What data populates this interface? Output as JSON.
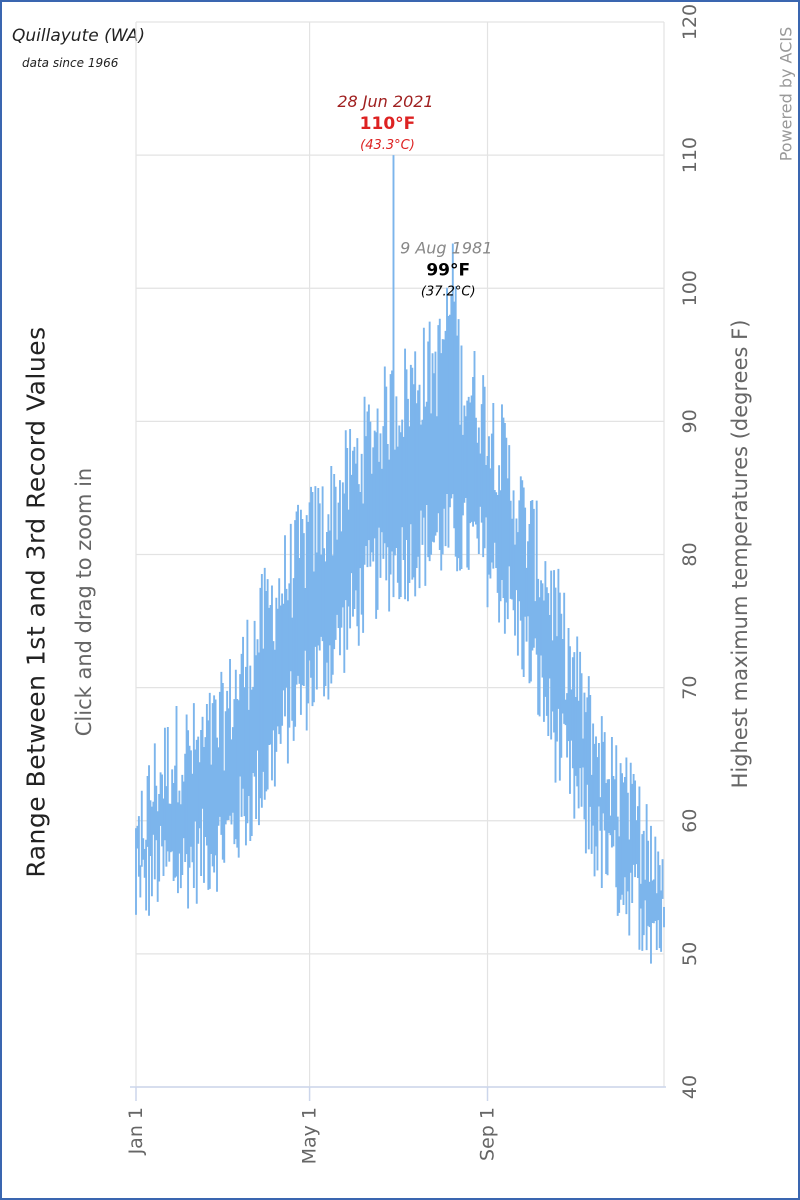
{
  "station": {
    "name": "Quillayute (WA)",
    "since": "data since 1966"
  },
  "credits": "Powered by ACIS",
  "chart_data": {
    "type": "bar",
    "title": "Range Between 1st and 3rd Record Values",
    "subtitle": "Click and drag to zoom in",
    "xlabel": "",
    "ylabel": "Highest maximum temperatures (degrees F)",
    "ylim": [
      40,
      120
    ],
    "yticks": [
      40,
      50,
      60,
      70,
      80,
      90,
      100,
      110,
      120
    ],
    "xticks": [
      {
        "label": "Jan 1",
        "day": 1
      },
      {
        "label": "May 1",
        "day": 121
      },
      {
        "label": "Sep 1",
        "day": 244
      }
    ],
    "xlim": [
      1,
      366
    ],
    "series": [
      {
        "color": "#7cb5ec",
        "keypoints_record1": [
          [
            1,
            57
          ],
          [
            15,
            62
          ],
          [
            30,
            64
          ],
          [
            45,
            64
          ],
          [
            60,
            66
          ],
          [
            75,
            70
          ],
          [
            90,
            74
          ],
          [
            105,
            77
          ],
          [
            120,
            80
          ],
          [
            135,
            82
          ],
          [
            150,
            85
          ],
          [
            165,
            88
          ],
          [
            177,
            110
          ],
          [
            180,
            90
          ],
          [
            195,
            92
          ],
          [
            210,
            93
          ],
          [
            221,
            99
          ],
          [
            225,
            92
          ],
          [
            240,
            90
          ],
          [
            255,
            86
          ],
          [
            270,
            81
          ],
          [
            285,
            77
          ],
          [
            300,
            71
          ],
          [
            315,
            66
          ],
          [
            330,
            62
          ],
          [
            345,
            59
          ],
          [
            366,
            55
          ]
        ],
        "keypoints_record3": [
          [
            1,
            55
          ],
          [
            15,
            57
          ],
          [
            30,
            57
          ],
          [
            45,
            58
          ],
          [
            60,
            59
          ],
          [
            75,
            61
          ],
          [
            90,
            64
          ],
          [
            105,
            68
          ],
          [
            120,
            71
          ],
          [
            135,
            73
          ],
          [
            150,
            76
          ],
          [
            165,
            79
          ],
          [
            180,
            80
          ],
          [
            195,
            81
          ],
          [
            210,
            82
          ],
          [
            225,
            82
          ],
          [
            240,
            81
          ],
          [
            255,
            78
          ],
          [
            270,
            74
          ],
          [
            285,
            69
          ],
          [
            300,
            64
          ],
          [
            315,
            60
          ],
          [
            330,
            57
          ],
          [
            345,
            55
          ],
          [
            366,
            52
          ]
        ]
      }
    ],
    "annotations": [
      {
        "date": "28 Jun 2021",
        "value": "110°F",
        "celsius": "(43.3°C)",
        "day": 179,
        "y": 110,
        "color": "#a02020"
      },
      {
        "date": "9 Aug 1981",
        "value": "99°F",
        "celsius": "(37.2°C)",
        "day": 221,
        "y": 99,
        "color": "#000000"
      }
    ],
    "grid": true,
    "legend": "none"
  }
}
